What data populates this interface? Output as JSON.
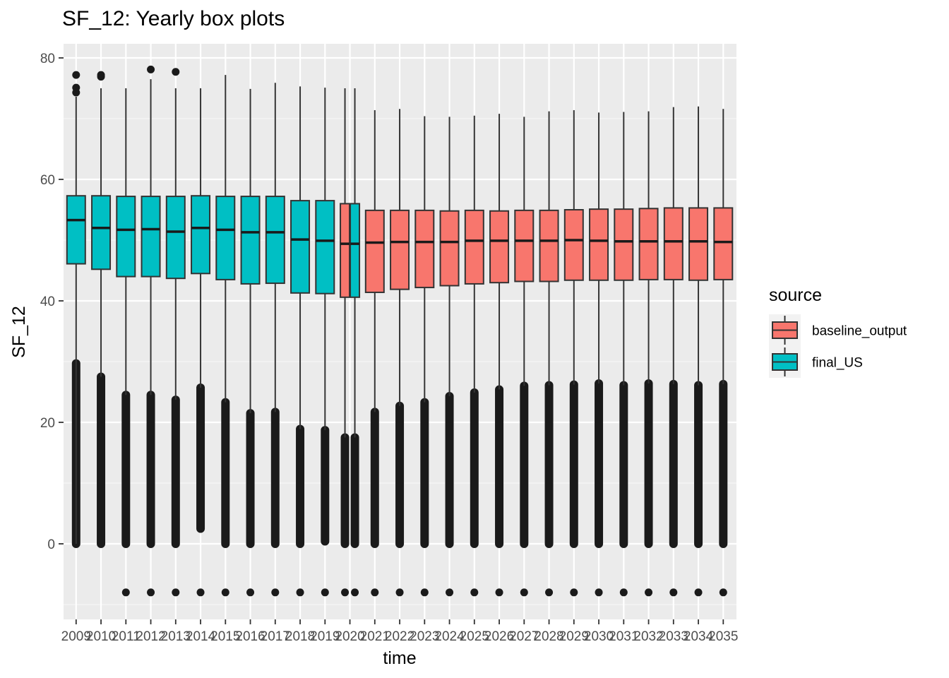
{
  "chart_data": {
    "type": "box",
    "title": "SF_12: Yearly box plots",
    "xlabel": "time",
    "ylabel": "SF_12",
    "ylim": [
      -12.5,
      84
    ],
    "y_ticks": [
      0,
      20,
      40,
      60,
      80
    ],
    "grid": true,
    "legend": {
      "title": "source",
      "position": "right",
      "entries": [
        {
          "name": "baseline_output",
          "color": "#F8766D"
        },
        {
          "name": "final_US",
          "color": "#00BFC4"
        }
      ]
    },
    "categories": [
      "2009",
      "2010",
      "2011",
      "2012",
      "2013",
      "2014",
      "2015",
      "2016",
      "2017",
      "2018",
      "2019",
      "2020",
      "2021",
      "2022",
      "2023",
      "2024",
      "2025",
      "2026",
      "2027",
      "2028",
      "2029",
      "2030",
      "2031",
      "2032",
      "2033",
      "2034",
      "2035"
    ],
    "series": [
      {
        "name": "final_US",
        "color": "#00BFC4",
        "boxes": [
          {
            "x": "2009",
            "lower_whisker": 0.0,
            "q1": 46.1,
            "median": 53.3,
            "q3": 57.3,
            "upper_whisker": 73.6,
            "outliers_high": [
              74.3,
              75.1,
              77.2
            ],
            "outliers_low_range": [
              0.0,
              29.7
            ],
            "outliers_extra": []
          },
          {
            "x": "2010",
            "lower_whisker": 27.5,
            "q1": 45.2,
            "median": 52.0,
            "q3": 57.3,
            "upper_whisker": 75.0,
            "outliers_high": [
              76.9,
              77.2
            ],
            "outliers_low_range": [
              0.0,
              27.5
            ],
            "outliers_extra": []
          },
          {
            "x": "2011",
            "lower_whisker": 24.5,
            "q1": 44.0,
            "median": 51.7,
            "q3": 57.2,
            "upper_whisker": 75.0,
            "outliers_high": [],
            "outliers_low_range": [
              0.0,
              24.5
            ],
            "outliers_extra": [
              -8
            ]
          },
          {
            "x": "2012",
            "lower_whisker": 24.5,
            "q1": 44.0,
            "median": 51.8,
            "q3": 57.2,
            "upper_whisker": 76.5,
            "outliers_high": [
              78.1
            ],
            "outliers_low_range": [
              0.0,
              24.5
            ],
            "outliers_extra": [
              -8
            ]
          },
          {
            "x": "2013",
            "lower_whisker": 23.7,
            "q1": 43.7,
            "median": 51.4,
            "q3": 57.2,
            "upper_whisker": 75.0,
            "outliers_high": [
              77.7
            ],
            "outliers_low_range": [
              0.0,
              23.7
            ],
            "outliers_extra": [
              -8
            ]
          },
          {
            "x": "2014",
            "lower_whisker": 25.7,
            "q1": 44.5,
            "median": 52.0,
            "q3": 57.3,
            "upper_whisker": 75.0,
            "outliers_high": [],
            "outliers_low_range": [
              2.5,
              25.7
            ],
            "outliers_extra": [
              -8
            ]
          },
          {
            "x": "2015",
            "lower_whisker": 23.3,
            "q1": 43.5,
            "median": 51.7,
            "q3": 57.2,
            "upper_whisker": 77.2,
            "outliers_high": [],
            "outliers_low_range": [
              0.0,
              23.3
            ],
            "outliers_extra": [
              -8
            ]
          },
          {
            "x": "2016",
            "lower_whisker": 21.5,
            "q1": 42.8,
            "median": 51.3,
            "q3": 57.2,
            "upper_whisker": 74.9,
            "outliers_high": [],
            "outliers_low_range": [
              0.0,
              21.5
            ],
            "outliers_extra": [
              -8
            ]
          },
          {
            "x": "2017",
            "lower_whisker": 21.7,
            "q1": 42.9,
            "median": 51.3,
            "q3": 57.2,
            "upper_whisker": 75.9,
            "outliers_high": [],
            "outliers_low_range": [
              0.0,
              21.7
            ],
            "outliers_extra": [
              -8
            ]
          },
          {
            "x": "2018",
            "lower_whisker": 18.9,
            "q1": 41.3,
            "median": 50.1,
            "q3": 56.5,
            "upper_whisker": 75.3,
            "outliers_high": [],
            "outliers_low_range": [
              0.0,
              18.9
            ],
            "outliers_extra": [
              -8
            ]
          },
          {
            "x": "2019",
            "lower_whisker": 18.7,
            "q1": 41.2,
            "median": 49.9,
            "q3": 56.5,
            "upper_whisker": 75.1,
            "outliers_high": [],
            "outliers_low_range": [
              0.4,
              18.7
            ],
            "outliers_extra": [
              -8
            ]
          },
          {
            "x": "2020",
            "lower_whisker": 17.5,
            "q1": 40.6,
            "median": 49.4,
            "q3": 56.0,
            "upper_whisker": 75.0,
            "outliers_high": [],
            "outliers_low_range": [
              0.0,
              17.5
            ],
            "outliers_extra": [
              -8
            ]
          }
        ]
      },
      {
        "name": "baseline_output",
        "color": "#F8766D",
        "boxes": [
          {
            "x": "2020",
            "lower_whisker": 17.5,
            "q1": 40.6,
            "median": 49.4,
            "q3": 56.0,
            "upper_whisker": 75.0,
            "outliers_high": [],
            "outliers_low_range": [
              0.0,
              17.5
            ],
            "outliers_extra": [
              -8
            ]
          },
          {
            "x": "2021",
            "lower_whisker": 21.7,
            "q1": 41.4,
            "median": 49.6,
            "q3": 54.9,
            "upper_whisker": 71.4,
            "outliers_high": [],
            "outliers_low_range": [
              0.0,
              21.7
            ],
            "outliers_extra": [
              -8
            ]
          },
          {
            "x": "2022",
            "lower_whisker": 22.7,
            "q1": 41.9,
            "median": 49.7,
            "q3": 54.9,
            "upper_whisker": 71.6,
            "outliers_high": [],
            "outliers_low_range": [
              0.0,
              22.7
            ],
            "outliers_extra": [
              -8
            ]
          },
          {
            "x": "2023",
            "lower_whisker": 23.3,
            "q1": 42.2,
            "median": 49.7,
            "q3": 54.9,
            "upper_whisker": 70.4,
            "outliers_high": [],
            "outliers_low_range": [
              0.0,
              23.3
            ],
            "outliers_extra": [
              -8
            ]
          },
          {
            "x": "2024",
            "lower_whisker": 24.3,
            "q1": 42.5,
            "median": 49.7,
            "q3": 54.8,
            "upper_whisker": 70.3,
            "outliers_high": [],
            "outliers_low_range": [
              0.0,
              24.3
            ],
            "outliers_extra": [
              -8
            ]
          },
          {
            "x": "2025",
            "lower_whisker": 24.9,
            "q1": 42.8,
            "median": 49.9,
            "q3": 54.9,
            "upper_whisker": 70.5,
            "outliers_high": [],
            "outliers_low_range": [
              0.0,
              24.9
            ],
            "outliers_extra": [
              -8
            ]
          },
          {
            "x": "2026",
            "lower_whisker": 25.4,
            "q1": 43.0,
            "median": 49.9,
            "q3": 54.8,
            "upper_whisker": 70.8,
            "outliers_high": [],
            "outliers_low_range": [
              0.0,
              25.4
            ],
            "outliers_extra": [
              -8
            ]
          },
          {
            "x": "2027",
            "lower_whisker": 26.0,
            "q1": 43.2,
            "median": 49.9,
            "q3": 54.9,
            "upper_whisker": 70.3,
            "outliers_high": [],
            "outliers_low_range": [
              0.0,
              26.0
            ],
            "outliers_extra": [
              -8
            ]
          },
          {
            "x": "2028",
            "lower_whisker": 26.1,
            "q1": 43.2,
            "median": 49.9,
            "q3": 54.9,
            "upper_whisker": 71.2,
            "outliers_high": [],
            "outliers_low_range": [
              0.0,
              26.1
            ],
            "outliers_extra": [
              -8
            ]
          },
          {
            "x": "2029",
            "lower_whisker": 26.2,
            "q1": 43.4,
            "median": 50.0,
            "q3": 55.0,
            "upper_whisker": 71.4,
            "outliers_high": [],
            "outliers_low_range": [
              0.0,
              26.2
            ],
            "outliers_extra": [
              -8
            ]
          },
          {
            "x": "2030",
            "lower_whisker": 26.4,
            "q1": 43.4,
            "median": 49.9,
            "q3": 55.1,
            "upper_whisker": 71.0,
            "outliers_high": [],
            "outliers_low_range": [
              0.0,
              26.4
            ],
            "outliers_extra": [
              -8
            ]
          },
          {
            "x": "2031",
            "lower_whisker": 26.1,
            "q1": 43.4,
            "median": 49.8,
            "q3": 55.1,
            "upper_whisker": 71.1,
            "outliers_high": [],
            "outliers_low_range": [
              0.0,
              26.1
            ],
            "outliers_extra": [
              -8
            ]
          },
          {
            "x": "2032",
            "lower_whisker": 26.4,
            "q1": 43.5,
            "median": 49.8,
            "q3": 55.2,
            "upper_whisker": 71.2,
            "outliers_high": [],
            "outliers_low_range": [
              0.0,
              26.4
            ],
            "outliers_extra": [
              -8
            ]
          },
          {
            "x": "2033",
            "lower_whisker": 26.3,
            "q1": 43.5,
            "median": 49.8,
            "q3": 55.3,
            "upper_whisker": 71.9,
            "outliers_high": [],
            "outliers_low_range": [
              0.0,
              26.3
            ],
            "outliers_extra": [
              -8
            ]
          },
          {
            "x": "2034",
            "lower_whisker": 26.1,
            "q1": 43.4,
            "median": 49.8,
            "q3": 55.3,
            "upper_whisker": 72.0,
            "outliers_high": [],
            "outliers_low_range": [
              0.0,
              26.1
            ],
            "outliers_extra": [
              -8
            ]
          },
          {
            "x": "2035",
            "lower_whisker": 26.3,
            "q1": 43.5,
            "median": 49.7,
            "q3": 55.3,
            "upper_whisker": 71.6,
            "outliers_high": [],
            "outliers_low_range": [
              0.0,
              26.3
            ],
            "outliers_extra": [
              -8
            ]
          }
        ]
      }
    ]
  }
}
